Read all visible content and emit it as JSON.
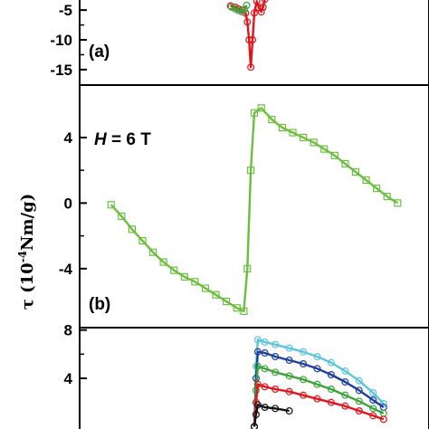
{
  "axis": {
    "ylabel_symbol": "τ",
    "ylabel_open": " (10",
    "ylabel_exp": "-4",
    "ylabel_unit": "Nm/g)"
  },
  "chart_data": [
    {
      "type": "line",
      "panel_label": "(a)",
      "ylim": [
        -17.6,
        -3
      ],
      "yticks": [
        -15,
        -10,
        -5
      ],
      "ytick_labels": [
        "-15",
        "-10",
        "-5"
      ],
      "xlim": [
        0,
        1
      ],
      "series": [
        {
          "color": "#e0141a",
          "marker": "circle",
          "x": [
            0.432,
            0.445,
            0.455,
            0.465,
            0.475,
            0.48,
            0.485,
            0.49,
            0.495,
            0.5,
            0.507,
            0.513,
            0.52,
            0.525,
            0.53
          ],
          "y": [
            -4.3,
            -4.5,
            -4.8,
            -5.0,
            -5.5,
            -7.0,
            -10.0,
            -14.6,
            -10.0,
            -5.5,
            -3.5,
            -4.6,
            -5.3,
            -4.5,
            -3.2
          ]
        },
        {
          "color": "#3ea33e",
          "marker": "circle",
          "x": [
            0.435,
            0.445,
            0.455,
            0.465,
            0.472,
            0.478
          ],
          "y": [
            -4.5,
            -4.8,
            -5.1,
            -5.3,
            -4.9,
            -4.2
          ]
        }
      ]
    },
    {
      "type": "line",
      "panel_label": "(b)",
      "annotation_var": "H",
      "annotation_value": " = 6 T",
      "ylim": [
        -7.6,
        7.2
      ],
      "yticks": [
        -4,
        0,
        4
      ],
      "ytick_labels": [
        "-4",
        "0",
        "4"
      ],
      "xlim": [
        0,
        1
      ],
      "series": [
        {
          "color": "#6cbf3c",
          "marker": "square",
          "x": [
            0.09,
            0.12,
            0.15,
            0.18,
            0.21,
            0.24,
            0.27,
            0.3,
            0.33,
            0.36,
            0.39,
            0.42,
            0.45,
            0.47,
            0.48,
            0.49,
            0.5,
            0.52,
            0.55,
            0.58,
            0.61,
            0.64,
            0.67,
            0.7,
            0.73,
            0.76,
            0.79,
            0.82,
            0.85,
            0.88,
            0.91
          ],
          "y": [
            -0.1,
            -0.8,
            -1.6,
            -2.3,
            -3.0,
            -3.6,
            -4.1,
            -4.5,
            -4.8,
            -5.2,
            -5.6,
            -6.0,
            -6.4,
            -6.6,
            -4.0,
            2.0,
            5.5,
            5.8,
            5.1,
            4.6,
            4.3,
            4.0,
            3.7,
            3.3,
            2.9,
            2.4,
            1.9,
            1.4,
            0.9,
            0.4,
            0.0
          ]
        }
      ]
    },
    {
      "type": "line",
      "panel_label": "",
      "ylim": [
        -0.5,
        8.2
      ],
      "yticks": [
        4,
        8
      ],
      "ytick_labels": [
        "4",
        "8"
      ],
      "xlim": [
        0,
        1
      ],
      "series": [
        {
          "color": "#5bc4de",
          "marker": "circle",
          "x": [
            0.5,
            0.505,
            0.51,
            0.53,
            0.56,
            0.6,
            0.64,
            0.68,
            0.72,
            0.76,
            0.8,
            0.84,
            0.87
          ],
          "y": [
            0.0,
            5.0,
            7.2,
            7.0,
            6.8,
            6.5,
            6.2,
            5.8,
            5.3,
            4.6,
            3.8,
            2.8,
            1.9
          ]
        },
        {
          "color": "#1f3f99",
          "marker": "circle",
          "x": [
            0.5,
            0.505,
            0.51,
            0.53,
            0.56,
            0.6,
            0.64,
            0.68,
            0.72,
            0.76,
            0.8,
            0.84,
            0.87
          ],
          "y": [
            0.0,
            4.0,
            6.2,
            6.1,
            5.8,
            5.5,
            5.2,
            4.8,
            4.3,
            3.7,
            3.0,
            2.2,
            1.6
          ]
        },
        {
          "color": "#3aa33a",
          "marker": "circle",
          "x": [
            0.5,
            0.505,
            0.51,
            0.53,
            0.56,
            0.6,
            0.64,
            0.68,
            0.72,
            0.76,
            0.8,
            0.84,
            0.87
          ],
          "y": [
            0.0,
            3.0,
            5.0,
            4.8,
            4.5,
            4.2,
            3.9,
            3.5,
            3.1,
            2.6,
            2.1,
            1.5,
            1.1
          ]
        },
        {
          "color": "#e0141a",
          "marker": "circle",
          "x": [
            0.5,
            0.505,
            0.51,
            0.53,
            0.56,
            0.6,
            0.64,
            0.68,
            0.72,
            0.76,
            0.8,
            0.84,
            0.87
          ],
          "y": [
            0.0,
            2.0,
            3.5,
            3.3,
            3.1,
            2.9,
            2.6,
            2.3,
            2.0,
            1.7,
            1.3,
            0.9,
            0.6
          ]
        },
        {
          "color": "#111111",
          "marker": "circle",
          "x": [
            0.5,
            0.505,
            0.51,
            0.53,
            0.56,
            0.6
          ],
          "y": [
            0.0,
            1.0,
            1.8,
            1.6,
            1.5,
            1.3
          ]
        }
      ]
    }
  ]
}
